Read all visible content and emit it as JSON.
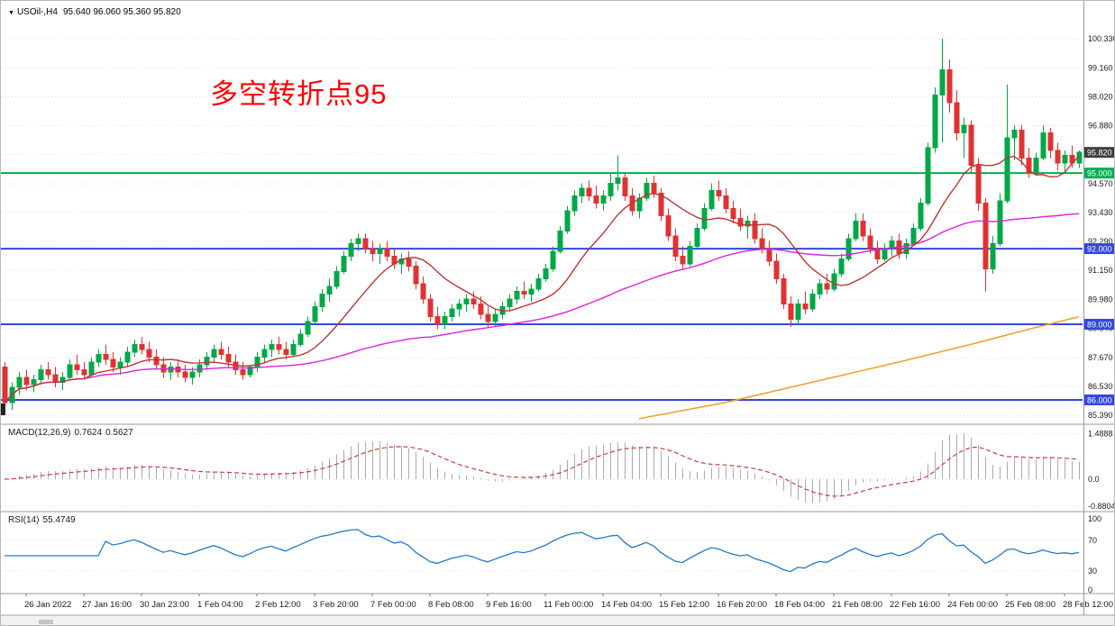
{
  "header": {
    "collapse_icon": "▼",
    "symbol_label": "USOil-,H4",
    "ohlc": "95.640 96.060 95.360 95.820"
  },
  "annotation": {
    "text": "多空转折点95",
    "color": "#ff0000"
  },
  "colors": {
    "background": "#ffffff",
    "grid": "#dcdcdc",
    "candle_up": "#00a846",
    "candle_down": "#e03232",
    "ma_fast_red": "#c03434",
    "ma_mid_magenta": "#e020e0",
    "ma_slow_orange": "#f0a030",
    "hline_green": "#00b050",
    "hline_blue": "#3346e0",
    "price_box": "#3c3c3c",
    "macd_hist": "#ababab",
    "macd_signal": "#cc3b3b",
    "rsi_line": "#2478c8",
    "separator": "#9a9a9a",
    "axis_text": "#1a1a1a"
  },
  "chart_data": {
    "type": "candlestick",
    "symbol": "USOil",
    "timeframe": "H4",
    "quote": {
      "open": "95.640",
      "high": "96.060",
      "low": "95.360",
      "close": "95.820"
    },
    "current_price": 95.82,
    "current_price_label": "95.820",
    "price_axis": {
      "ticks": [
        "100.330",
        "99.160",
        "98.020",
        "96.880",
        "95.740",
        "94.570",
        "93.430",
        "92.290",
        "91.150",
        "89.980",
        "88.840",
        "87.670",
        "86.530",
        "85.390"
      ]
    },
    "hlines": [
      {
        "price": 95.0,
        "label": "95.000",
        "color": "#00b050"
      },
      {
        "price": 92.0,
        "label": "92.000",
        "color": "#3346e0"
      },
      {
        "price": 89.0,
        "label": "89.000",
        "color": "#3346e0"
      },
      {
        "price": 86.0,
        "label": "86.000",
        "color": "#3346e0"
      }
    ],
    "time_axis": {
      "labels": [
        "26 Jan 2022",
        "27 Jan 16:00",
        "30 Jan 23:00",
        "1 Feb 04:00",
        "2 Feb 12:00",
        "3 Feb 20:00",
        "7 Feb 00:00",
        "8 Feb 08:00",
        "9 Feb 16:00",
        "11 Feb 00:00",
        "14 Feb 04:00",
        "15 Feb 12:00",
        "16 Feb 20:00",
        "18 Feb 04:00",
        "21 Feb 08:00",
        "22 Feb 16:00",
        "24 Feb 00:00",
        "25 Feb 08:00",
        "28 Feb 12:00"
      ],
      "first_bar_index": 3,
      "bars_per_label": 8
    },
    "candles": [
      [
        87.3,
        87.5,
        85.4,
        85.9
      ],
      [
        85.9,
        86.7,
        85.6,
        86.5
      ],
      [
        86.5,
        87.1,
        86.2,
        86.9
      ],
      [
        86.9,
        87.2,
        86.4,
        86.6
      ],
      [
        86.6,
        87.0,
        86.3,
        86.8
      ],
      [
        86.8,
        87.4,
        86.6,
        87.2
      ],
      [
        87.2,
        87.5,
        86.8,
        87.0
      ],
      [
        87.0,
        87.3,
        86.5,
        86.7
      ],
      [
        86.7,
        87.1,
        86.4,
        86.9
      ],
      [
        86.9,
        87.6,
        86.8,
        87.4
      ],
      [
        87.4,
        87.8,
        87.0,
        87.2
      ],
      [
        87.2,
        87.5,
        86.8,
        87.0
      ],
      [
        87.0,
        87.7,
        86.9,
        87.5
      ],
      [
        87.5,
        88.0,
        87.3,
        87.8
      ],
      [
        87.8,
        88.2,
        87.4,
        87.6
      ],
      [
        87.6,
        87.9,
        87.1,
        87.3
      ],
      [
        87.3,
        87.7,
        87.0,
        87.5
      ],
      [
        87.5,
        88.1,
        87.3,
        87.9
      ],
      [
        87.9,
        88.4,
        87.7,
        88.2
      ],
      [
        88.2,
        88.5,
        87.8,
        88.0
      ],
      [
        88.0,
        88.3,
        87.5,
        87.7
      ],
      [
        87.7,
        88.0,
        87.2,
        87.4
      ],
      [
        87.4,
        87.7,
        86.9,
        87.1
      ],
      [
        87.1,
        87.5,
        86.8,
        87.3
      ],
      [
        87.3,
        87.6,
        86.9,
        87.1
      ],
      [
        87.1,
        87.4,
        86.7,
        86.9
      ],
      [
        86.9,
        87.3,
        86.6,
        87.1
      ],
      [
        87.1,
        87.6,
        86.9,
        87.4
      ],
      [
        87.4,
        87.9,
        87.2,
        87.7
      ],
      [
        87.7,
        88.2,
        87.5,
        88.0
      ],
      [
        88.0,
        88.3,
        87.6,
        87.8
      ],
      [
        87.8,
        88.1,
        87.3,
        87.5
      ],
      [
        87.5,
        87.8,
        87.0,
        87.2
      ],
      [
        87.2,
        87.5,
        86.8,
        87.0
      ],
      [
        87.0,
        87.4,
        86.9,
        87.3
      ],
      [
        87.3,
        87.9,
        87.1,
        87.7
      ],
      [
        87.7,
        88.2,
        87.5,
        88.0
      ],
      [
        88.0,
        88.4,
        87.7,
        88.2
      ],
      [
        88.2,
        88.5,
        87.8,
        88.0
      ],
      [
        88.0,
        88.3,
        87.6,
        87.8
      ],
      [
        87.8,
        88.4,
        87.7,
        88.2
      ],
      [
        88.2,
        88.8,
        88.1,
        88.6
      ],
      [
        88.6,
        89.3,
        88.5,
        89.1
      ],
      [
        89.1,
        89.9,
        89.0,
        89.7
      ],
      [
        89.7,
        90.4,
        89.5,
        90.2
      ],
      [
        90.2,
        90.8,
        89.9,
        90.5
      ],
      [
        90.5,
        91.3,
        90.4,
        91.1
      ],
      [
        91.1,
        91.9,
        91.0,
        91.7
      ],
      [
        91.7,
        92.4,
        91.5,
        92.2
      ],
      [
        92.2,
        92.6,
        91.9,
        92.4
      ],
      [
        92.4,
        92.6,
        91.8,
        92.0
      ],
      [
        92.0,
        92.3,
        91.5,
        91.8
      ],
      [
        91.8,
        92.2,
        91.4,
        92.0
      ],
      [
        92.0,
        92.3,
        91.5,
        91.7
      ],
      [
        91.7,
        92.0,
        91.2,
        91.4
      ],
      [
        91.4,
        91.8,
        91.0,
        91.6
      ],
      [
        91.6,
        91.9,
        91.1,
        91.3
      ],
      [
        91.3,
        91.5,
        90.4,
        90.6
      ],
      [
        90.6,
        90.9,
        89.8,
        90.0
      ],
      [
        90.0,
        90.2,
        89.1,
        89.3
      ],
      [
        89.3,
        89.7,
        88.8,
        89.0
      ],
      [
        89.0,
        89.5,
        88.8,
        89.3
      ],
      [
        89.3,
        89.8,
        89.1,
        89.6
      ],
      [
        89.6,
        90.0,
        89.3,
        89.8
      ],
      [
        89.8,
        90.2,
        89.5,
        90.0
      ],
      [
        90.0,
        90.3,
        89.6,
        89.8
      ],
      [
        89.8,
        90.1,
        89.2,
        89.4
      ],
      [
        89.4,
        89.7,
        88.9,
        89.1
      ],
      [
        89.1,
        89.6,
        88.9,
        89.4
      ],
      [
        89.4,
        89.9,
        89.2,
        89.7
      ],
      [
        89.7,
        90.2,
        89.5,
        90.0
      ],
      [
        90.0,
        90.5,
        89.8,
        90.3
      ],
      [
        90.3,
        90.7,
        90.0,
        90.2
      ],
      [
        90.2,
        90.6,
        89.9,
        90.4
      ],
      [
        90.4,
        91.0,
        90.3,
        90.8
      ],
      [
        90.8,
        91.4,
        90.7,
        91.2
      ],
      [
        91.2,
        92.1,
        91.1,
        91.9
      ],
      [
        91.9,
        92.9,
        91.8,
        92.7
      ],
      [
        92.7,
        93.7,
        92.6,
        93.5
      ],
      [
        93.5,
        94.3,
        93.3,
        94.1
      ],
      [
        94.1,
        94.6,
        93.8,
        94.4
      ],
      [
        94.4,
        94.7,
        93.9,
        94.1
      ],
      [
        94.1,
        94.5,
        93.6,
        93.8
      ],
      [
        93.8,
        94.3,
        93.5,
        94.1
      ],
      [
        94.1,
        95.0,
        93.9,
        94.6
      ],
      [
        94.6,
        95.7,
        94.3,
        94.8
      ],
      [
        94.8,
        95.0,
        93.9,
        94.1
      ],
      [
        94.1,
        94.4,
        93.3,
        93.5
      ],
      [
        93.5,
        94.2,
        93.2,
        94.0
      ],
      [
        94.0,
        94.8,
        93.9,
        94.6
      ],
      [
        94.6,
        94.9,
        94.0,
        94.2
      ],
      [
        94.2,
        94.4,
        93.1,
        93.3
      ],
      [
        93.3,
        93.6,
        92.3,
        92.5
      ],
      [
        92.5,
        92.8,
        91.5,
        91.7
      ],
      [
        91.7,
        92.1,
        91.2,
        91.4
      ],
      [
        91.4,
        92.3,
        91.3,
        92.1
      ],
      [
        92.1,
        93.0,
        92.0,
        92.8
      ],
      [
        92.8,
        93.8,
        92.7,
        93.6
      ],
      [
        93.6,
        94.6,
        93.5,
        94.3
      ],
      [
        94.3,
        94.7,
        93.9,
        94.1
      ],
      [
        94.1,
        94.4,
        93.4,
        93.6
      ],
      [
        93.6,
        93.9,
        93.0,
        93.2
      ],
      [
        93.2,
        93.6,
        92.7,
        92.9
      ],
      [
        92.9,
        93.3,
        92.4,
        93.1
      ],
      [
        93.1,
        93.4,
        92.2,
        92.4
      ],
      [
        92.4,
        92.8,
        91.8,
        92.0
      ],
      [
        92.0,
        92.3,
        91.3,
        91.5
      ],
      [
        91.5,
        91.8,
        90.6,
        90.8
      ],
      [
        90.8,
        91.0,
        89.6,
        89.8
      ],
      [
        89.8,
        90.1,
        88.9,
        89.2
      ],
      [
        89.2,
        90.0,
        89.0,
        89.8
      ],
      [
        89.8,
        90.3,
        89.4,
        89.6
      ],
      [
        89.6,
        90.4,
        89.5,
        90.2
      ],
      [
        90.2,
        90.8,
        90.0,
        90.6
      ],
      [
        90.6,
        91.0,
        90.2,
        90.4
      ],
      [
        90.4,
        91.2,
        90.3,
        91.0
      ],
      [
        91.0,
        91.8,
        90.9,
        91.6
      ],
      [
        91.6,
        92.6,
        91.5,
        92.4
      ],
      [
        92.4,
        93.4,
        92.3,
        93.1
      ],
      [
        93.1,
        93.4,
        92.3,
        92.5
      ],
      [
        92.5,
        92.8,
        91.8,
        92.0
      ],
      [
        92.0,
        92.3,
        91.4,
        91.6
      ],
      [
        91.6,
        92.2,
        91.5,
        92.0
      ],
      [
        92.0,
        92.5,
        91.7,
        92.3
      ],
      [
        92.3,
        92.6,
        91.6,
        91.8
      ],
      [
        91.8,
        92.4,
        91.6,
        92.2
      ],
      [
        92.2,
        93.0,
        92.1,
        92.8
      ],
      [
        92.8,
        94.0,
        92.7,
        93.8
      ],
      [
        93.8,
        96.2,
        93.7,
        96.0
      ],
      [
        96.0,
        98.4,
        95.8,
        98.1
      ],
      [
        98.1,
        100.33,
        96.2,
        99.1
      ],
      [
        99.1,
        99.5,
        97.4,
        97.8
      ],
      [
        97.8,
        98.3,
        96.3,
        96.6
      ],
      [
        96.6,
        97.2,
        95.6,
        96.9
      ],
      [
        96.9,
        97.1,
        95.0,
        95.3
      ],
      [
        95.3,
        95.6,
        93.5,
        93.8
      ],
      [
        93.8,
        94.0,
        90.3,
        91.2
      ],
      [
        91.2,
        92.5,
        91.0,
        92.2
      ],
      [
        92.2,
        94.2,
        92.1,
        93.9
      ],
      [
        93.9,
        98.5,
        93.8,
        96.4
      ],
      [
        96.4,
        96.9,
        95.5,
        96.7
      ],
      [
        96.7,
        96.9,
        95.3,
        95.6
      ],
      [
        95.6,
        96.0,
        94.8,
        95.0
      ],
      [
        95.0,
        95.8,
        94.9,
        95.6
      ],
      [
        95.6,
        96.9,
        95.5,
        96.6
      ],
      [
        96.6,
        96.8,
        95.6,
        95.9
      ],
      [
        95.9,
        96.2,
        95.1,
        95.4
      ],
      [
        95.4,
        95.9,
        95.0,
        95.7
      ],
      [
        95.7,
        96.1,
        95.2,
        95.4
      ],
      [
        95.4,
        95.9,
        95.2,
        95.82
      ]
    ],
    "moving_averages": {
      "fast_red_period": 12,
      "mid_magenta_period": 60,
      "slow_orange_anchors": [
        [
          88,
          85.25
        ],
        [
          100,
          85.9
        ],
        [
          112,
          86.7
        ],
        [
          124,
          87.5
        ],
        [
          134,
          88.2
        ],
        [
          142,
          88.8
        ],
        [
          149,
          89.3
        ]
      ]
    },
    "macd": {
      "label": "MACD(12,26,9)",
      "value_main": "0.7624",
      "value_signal": "0.5627",
      "params": [
        12,
        26,
        9
      ],
      "axis_labels": [
        "1.4888",
        "0.0",
        "-0.8804"
      ],
      "axis_values": [
        1.4888,
        0.0,
        -0.8804
      ]
    },
    "rsi": {
      "label": "RSI(14)",
      "value": "55.4749",
      "period": 14,
      "axis_labels": [
        "100",
        "70",
        "30",
        "0"
      ],
      "axis_values": [
        100,
        70,
        30,
        0
      ],
      "levels": [
        70,
        30
      ]
    }
  }
}
